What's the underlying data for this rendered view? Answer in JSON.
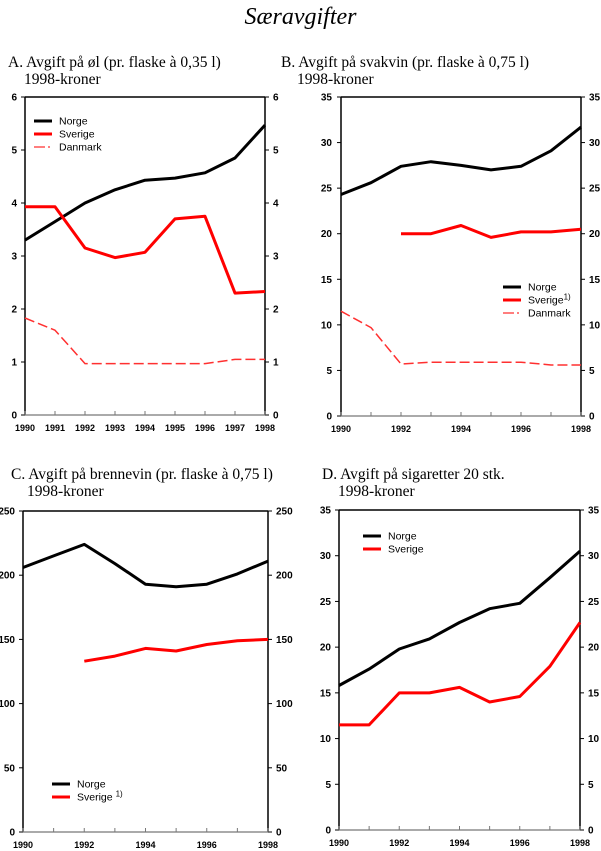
{
  "page": {
    "title": "Særavgifter"
  },
  "chart_data": [
    {
      "id": "A",
      "type": "line",
      "title": "A. Avgift på øl (pr. flaske à 0,35 l)",
      "subtitle": "1998-kroner",
      "x": [
        1990,
        1991,
        1992,
        1993,
        1994,
        1995,
        1996,
        1997,
        1998
      ],
      "x_tick_labels": [
        "1990",
        "1991",
        "1992",
        "1993",
        "1994",
        "1995",
        "1996",
        "1997",
        "1998"
      ],
      "ylim": [
        0,
        6
      ],
      "y_ticks": [
        0,
        1,
        2,
        3,
        4,
        5,
        6
      ],
      "y_tick_labels": [
        "0",
        "1",
        "2",
        "3",
        "4",
        "5",
        "6"
      ],
      "xlabel": "",
      "ylabel": "",
      "grid": false,
      "legend_position": "top-left",
      "series": [
        {
          "name": "Norge",
          "legend_label": "Norge",
          "footnote": "",
          "color": "#000000",
          "style": "solid",
          "values": [
            3.3,
            3.65,
            4.0,
            4.25,
            4.43,
            4.47,
            4.57,
            4.85,
            5.47
          ]
        },
        {
          "name": "Sverige",
          "legend_label": "Sverige",
          "footnote": "",
          "color": "#ff0000",
          "style": "solid",
          "values": [
            3.93,
            3.93,
            3.15,
            2.97,
            3.07,
            3.7,
            3.75,
            2.3,
            2.33
          ]
        },
        {
          "name": "Danmark",
          "legend_label": "Danmark",
          "footnote": "",
          "color": "#ff3030",
          "style": "dashed",
          "values": [
            1.83,
            1.6,
            0.97,
            0.97,
            0.97,
            0.97,
            0.97,
            1.05,
            1.05
          ]
        }
      ]
    },
    {
      "id": "B",
      "type": "line",
      "title": "B. Avgift på svakvin (pr. flaske à 0,75 l)",
      "subtitle": "1998-kroner",
      "x": [
        1990,
        1991,
        1992,
        1993,
        1994,
        1995,
        1996,
        1997,
        1998
      ],
      "x_tick_labels": [
        "1990",
        "",
        "1992",
        "",
        "1994",
        "",
        "1996",
        "",
        "1998"
      ],
      "ylim": [
        0,
        35
      ],
      "y_ticks": [
        0,
        5,
        10,
        15,
        20,
        25,
        30,
        35
      ],
      "y_tick_labels": [
        "0",
        "5",
        "10",
        "15",
        "20",
        "25",
        "30",
        "35"
      ],
      "xlabel": "",
      "ylabel": "",
      "grid": false,
      "legend_position": "middle-right",
      "series": [
        {
          "name": "Norge",
          "legend_label": "Norge",
          "footnote": "",
          "color": "#000000",
          "style": "solid",
          "values": [
            24.3,
            25.6,
            27.4,
            27.9,
            27.5,
            27.0,
            27.4,
            29.1,
            31.7
          ]
        },
        {
          "name": "Sverige",
          "legend_label": "Sverige",
          "footnote": "1)",
          "color": "#ff0000",
          "style": "solid",
          "values": [
            null,
            null,
            20.0,
            20.0,
            20.9,
            19.6,
            20.2,
            20.2,
            20.5
          ]
        },
        {
          "name": "Danmark",
          "legend_label": "Danmark",
          "footnote": "",
          "color": "#ff3030",
          "style": "dashed",
          "values": [
            11.5,
            9.7,
            5.7,
            5.9,
            5.9,
            5.9,
            5.9,
            5.6,
            5.6
          ]
        }
      ]
    },
    {
      "id": "C",
      "type": "line",
      "title": "C. Avgift på brennevin (pr. flaske à 0,75 l)",
      "subtitle": "1998-kroner",
      "x": [
        1990,
        1991,
        1992,
        1993,
        1994,
        1995,
        1996,
        1997,
        1998
      ],
      "x_tick_labels": [
        "1990",
        "",
        "1992",
        "",
        "1994",
        "",
        "1996",
        "",
        "1998"
      ],
      "ylim": [
        0,
        250
      ],
      "y_ticks": [
        0,
        50,
        100,
        150,
        200,
        250
      ],
      "y_tick_labels": [
        "0",
        "50",
        "100",
        "150",
        "200",
        "250"
      ],
      "xlabel": "",
      "ylabel": "",
      "grid": false,
      "legend_position": "bottom-left",
      "series": [
        {
          "name": "Norge",
          "legend_label": "Norge",
          "footnote": "",
          "color": "#000000",
          "style": "solid",
          "values": [
            206,
            215,
            224,
            209,
            193,
            191,
            193,
            201,
            211
          ]
        },
        {
          "name": "Sverige",
          "legend_label": "Sverige",
          "footnote": "1)",
          "color": "#ff0000",
          "style": "solid",
          "values": [
            null,
            null,
            133,
            137,
            143,
            141,
            146,
            149,
            150
          ]
        }
      ]
    },
    {
      "id": "D",
      "type": "line",
      "title": "D. Avgift på sigaretter 20 stk.",
      "subtitle": "1998-kroner",
      "x": [
        1990,
        1991,
        1992,
        1993,
        1994,
        1995,
        1996,
        1997,
        1998
      ],
      "x_tick_labels": [
        "1990",
        "",
        "1992",
        "",
        "1994",
        "",
        "1996",
        "",
        "1998"
      ],
      "ylim": [
        0,
        35
      ],
      "y_ticks": [
        0,
        5,
        10,
        15,
        20,
        25,
        30,
        35
      ],
      "y_tick_labels": [
        "0",
        "5",
        "10",
        "15",
        "20",
        "25",
        "30",
        "35"
      ],
      "xlabel": "",
      "ylabel": "",
      "grid": false,
      "legend_position": "top-left",
      "series": [
        {
          "name": "Norge",
          "legend_label": "Norge",
          "footnote": "",
          "color": "#000000",
          "style": "solid",
          "values": [
            15.8,
            17.6,
            19.8,
            20.9,
            22.7,
            24.2,
            24.8,
            27.6,
            30.5
          ]
        },
        {
          "name": "Sverige",
          "legend_label": "Sverige",
          "footnote": "",
          "color": "#ff0000",
          "style": "solid",
          "values": [
            11.5,
            11.5,
            15.0,
            15.0,
            15.6,
            14.0,
            14.6,
            17.9,
            22.7
          ]
        }
      ]
    }
  ]
}
